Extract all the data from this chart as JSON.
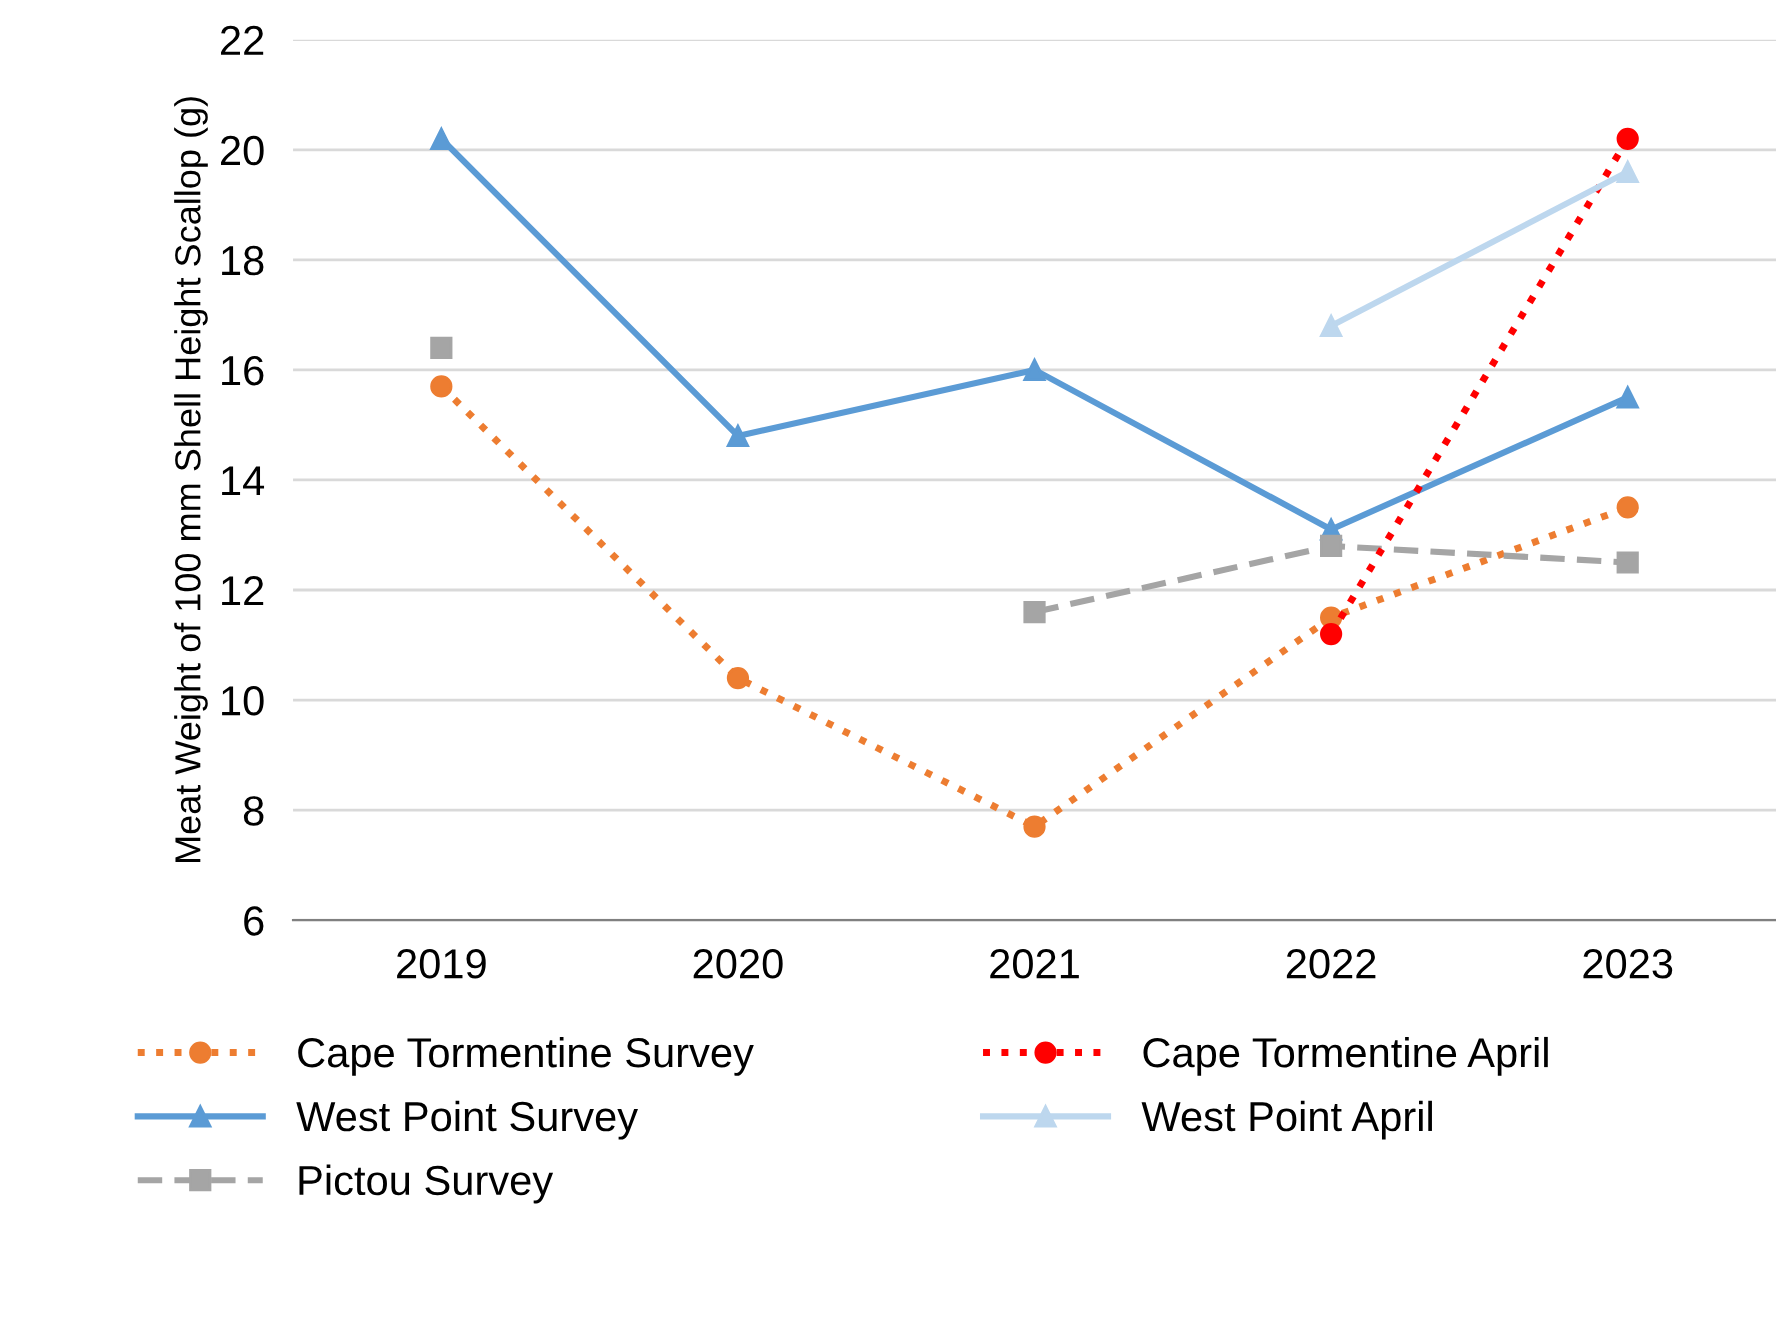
{
  "chart_data": {
    "type": "line",
    "ylabel": "Meat Weight of 100 mm Shell Height Scallop (g)",
    "categories": [
      "2019",
      "2020",
      "2021",
      "2022",
      "2023"
    ],
    "series": [
      {
        "name": "Cape Tormentine Survey",
        "color": "#ed7d31",
        "values": [
          15.7,
          10.4,
          7.7,
          11.5,
          13.5
        ],
        "marker": "circle",
        "line_style": "dotted"
      },
      {
        "name": "West Point Survey",
        "color": "#5b9bd5",
        "values": [
          20.2,
          14.8,
          16.0,
          13.1,
          15.5
        ],
        "marker": "triangle",
        "line_style": "solid"
      },
      {
        "name": "Pictou Survey",
        "color": "#a5a5a5",
        "values": [
          16.4,
          null,
          11.6,
          12.8,
          12.5
        ],
        "marker": "square",
        "line_style": "dashed"
      },
      {
        "name": "Cape Tormentine April",
        "color": "#ff0000",
        "values": [
          null,
          null,
          null,
          11.2,
          20.2
        ],
        "marker": "circle",
        "line_style": "dotted"
      },
      {
        "name": "West Point April",
        "color": "#bdd7ee",
        "values": [
          null,
          null,
          null,
          16.8,
          19.6
        ],
        "marker": "triangle",
        "line_style": "solid"
      }
    ],
    "ylim": [
      6,
      22
    ],
    "yticks": [
      6,
      8,
      10,
      12,
      14,
      16,
      18,
      20,
      22
    ],
    "grid": "y",
    "legend": "bottom"
  }
}
